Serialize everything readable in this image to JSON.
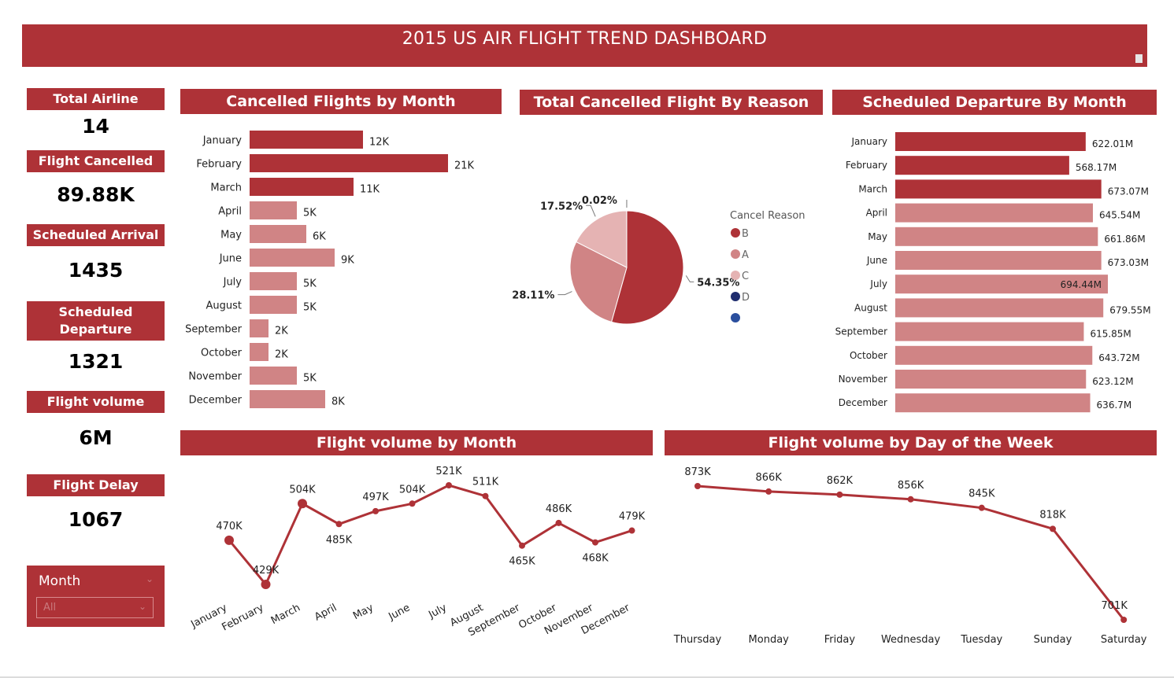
{
  "dashboard": {
    "title": "2015 US AIR FLIGHT TREND DASHBOARD"
  },
  "colors": {
    "primary": "#ae3237",
    "light": "#d08485",
    "lighter": "#e5b3b3",
    "navy": "#1f2d6e",
    "blue": "#2b4f9e"
  },
  "kpis": [
    {
      "label": "Total Airline",
      "value": "14"
    },
    {
      "label": "Flight Cancelled",
      "value": "89.88K"
    },
    {
      "label": "Scheduled Arrival",
      "value": "1435"
    },
    {
      "label": "Scheduled Departure",
      "value": "1321"
    },
    {
      "label": "Flight volume",
      "value": "6M"
    },
    {
      "label": "Flight Delay",
      "value": "1067"
    }
  ],
  "slicer": {
    "label": "Month",
    "selected": "All"
  },
  "chart_data": [
    {
      "type": "bar",
      "title": "Cancelled Flights by Month",
      "orientation": "horizontal",
      "categories": [
        "January",
        "February",
        "March",
        "April",
        "May",
        "June",
        "July",
        "August",
        "September",
        "October",
        "November",
        "December"
      ],
      "values": [
        12,
        21,
        11,
        5,
        6,
        9,
        5,
        5,
        2,
        2,
        5,
        8
      ],
      "labels": [
        "12K",
        "21K",
        "11K",
        "5K",
        "6K",
        "9K",
        "5K",
        "5K",
        "2K",
        "2K",
        "5K",
        "8K"
      ],
      "highlighted": [
        "January",
        "February",
        "March"
      ]
    },
    {
      "type": "pie",
      "title": "Total Cancelled Flight By Reason",
      "legend_title": "Cancel Reason",
      "legend_position": "right",
      "legend": [
        "B",
        "A",
        "C",
        "D",
        ""
      ],
      "slices": [
        {
          "name": "B",
          "value": 54.35,
          "label": "54.35%"
        },
        {
          "name": "A",
          "value": 28.11,
          "label": "28.11%"
        },
        {
          "name": "C",
          "value": 17.52,
          "label": "17.52%"
        },
        {
          "name": "D",
          "value": 0.02,
          "label": "0.02%"
        }
      ]
    },
    {
      "type": "bar",
      "title": "Scheduled Departure By Month",
      "orientation": "horizontal",
      "categories": [
        "January",
        "February",
        "March",
        "April",
        "May",
        "June",
        "July",
        "August",
        "September",
        "October",
        "November",
        "December"
      ],
      "values": [
        622.01,
        568.17,
        673.07,
        645.54,
        661.86,
        673.03,
        694.44,
        679.55,
        615.85,
        643.72,
        623.12,
        636.7
      ],
      "labels": [
        "622.01M",
        "568.17M",
        "673.07M",
        "645.54M",
        "661.86M",
        "673.03M",
        "694.44M",
        "679.55M",
        "615.85M",
        "643.72M",
        "623.12M",
        "636.7M"
      ],
      "highlighted": [
        "January",
        "February",
        "March"
      ]
    },
    {
      "type": "line",
      "title": "Flight volume by Month",
      "x": [
        "January",
        "February",
        "March",
        "April",
        "May",
        "June",
        "July",
        "August",
        "September",
        "October",
        "November",
        "December"
      ],
      "values": [
        470,
        429,
        504,
        485,
        497,
        504,
        521,
        511,
        465,
        486,
        468,
        479
      ],
      "labels": [
        "470K",
        "429K",
        "504K",
        "485K",
        "497K",
        "504K",
        "521K",
        "511K",
        "465K",
        "486K",
        "468K",
        "479K"
      ],
      "highlighted": [
        "January",
        "February",
        "March"
      ]
    },
    {
      "type": "line",
      "title": "Flight volume by Day of the Week",
      "x": [
        "Thursday",
        "Monday",
        "Friday",
        "Wednesday",
        "Tuesday",
        "Sunday",
        "Saturday"
      ],
      "values": [
        873,
        866,
        862,
        856,
        845,
        818,
        701
      ],
      "labels": [
        "873K",
        "866K",
        "862K",
        "856K",
        "845K",
        "818K",
        "701K"
      ]
    }
  ]
}
